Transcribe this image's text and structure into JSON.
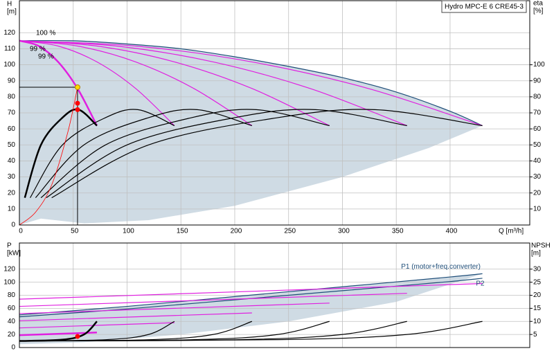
{
  "header": {
    "title": "Hydro MPC-E 6 CRE45-3"
  },
  "chart_data": [
    {
      "type": "line",
      "y_label": [
        "H",
        "[m]"
      ],
      "y2_label": [
        "eta",
        "[%]"
      ],
      "x_label": "Q [m³/h]",
      "annotations": [
        "100 %",
        "99 %",
        "99 %"
      ],
      "xlim": [
        0,
        474
      ],
      "ylim": [
        0,
        140
      ],
      "y2lim": [
        0,
        140
      ],
      "xticks": [
        0,
        50,
        100,
        150,
        200,
        250,
        300,
        350,
        400
      ],
      "yticks": [
        0,
        10,
        20,
        30,
        40,
        50,
        60,
        70,
        80,
        90,
        100,
        110,
        120
      ],
      "y2ticks": [
        10,
        20,
        30,
        40,
        50,
        60,
        70,
        80,
        90,
        100
      ],
      "grid": true,
      "area": {
        "color": "#cfdbe4",
        "x": [
          0,
          50,
          100,
          150,
          200,
          250,
          300,
          350,
          400,
          430,
          380,
          300,
          200,
          120,
          60,
          20,
          0
        ],
        "values": [
          114,
          115,
          113,
          110,
          105,
          99,
          92,
          83,
          71,
          62,
          48,
          30,
          12,
          3,
          1,
          4,
          0
        ]
      },
      "series": [
        {
          "color": "#1f4e79",
          "x": [
            0,
            50,
            100,
            150,
            200,
            250,
            300,
            350,
            400,
            430
          ],
          "values": [
            115,
            115,
            113,
            110,
            105,
            99,
            92,
            83,
            71,
            62
          ]
        },
        {
          "color": "#e020e0",
          "x": [
            0,
            18,
            36,
            54,
            72
          ],
          "values": [
            115,
            111.7,
            101.8,
            85.2,
            62
          ],
          "width": 2.5
        },
        {
          "color": "#e020e0",
          "x": [
            0,
            36,
            72,
            108,
            144
          ],
          "values": [
            115,
            111.7,
            101.8,
            85.2,
            62
          ]
        },
        {
          "color": "#e020e0",
          "x": [
            0,
            54,
            108,
            162,
            216
          ],
          "values": [
            115,
            111.7,
            101.8,
            85.2,
            62
          ]
        },
        {
          "color": "#e020e0",
          "x": [
            0,
            72,
            144,
            216,
            288
          ],
          "values": [
            115,
            111.7,
            101.8,
            85.2,
            62
          ]
        },
        {
          "color": "#e020e0",
          "x": [
            0,
            90,
            180,
            270,
            360
          ],
          "values": [
            115,
            111.7,
            101.8,
            85.2,
            62
          ]
        },
        {
          "color": "#e020e0",
          "x": [
            0,
            108,
            216,
            324,
            430
          ],
          "values": [
            115,
            111.7,
            101.8,
            85.2,
            62
          ]
        },
        {
          "color": "#000000",
          "axis": "y2",
          "x": [
            5,
            20,
            40,
            55,
            72
          ],
          "values": [
            17,
            50,
            67,
            72,
            62
          ],
          "width": 2.5
        },
        {
          "color": "#000000",
          "axis": "y2",
          "x": [
            10,
            40,
            80,
            110,
            144
          ],
          "values": [
            17,
            50,
            67,
            72,
            62
          ]
        },
        {
          "color": "#000000",
          "axis": "y2",
          "x": [
            15,
            60,
            120,
            165,
            216
          ],
          "values": [
            17,
            50,
            67,
            72,
            62
          ]
        },
        {
          "color": "#000000",
          "axis": "y2",
          "x": [
            20,
            80,
            160,
            220,
            288
          ],
          "values": [
            17,
            50,
            67,
            72,
            62
          ]
        },
        {
          "color": "#000000",
          "axis": "y2",
          "x": [
            25,
            100,
            200,
            275,
            360
          ],
          "values": [
            17,
            50,
            67,
            72,
            62
          ]
        },
        {
          "color": "#000000",
          "axis": "y2",
          "x": [
            30,
            120,
            240,
            330,
            430
          ],
          "values": [
            17,
            50,
            67,
            72,
            62
          ]
        },
        {
          "color": "#ff0000",
          "x": [
            0,
            15,
            30,
            45,
            54
          ],
          "values": [
            0,
            8,
            25,
            58,
            86
          ],
          "width": 0.8
        }
      ],
      "markers": {
        "x": [
          54,
          54,
          54
        ],
        "values": [
          86,
          76,
          72
        ],
        "colors": [
          "#ffd700",
          "#ff0000",
          "#ff0000"
        ]
      }
    },
    {
      "type": "line",
      "y_label": [
        "P",
        "[kW]"
      ],
      "y2_label": [
        "NPSH",
        "[m]"
      ],
      "xlim": [
        0,
        474
      ],
      "ylim": [
        0,
        160
      ],
      "y2lim": [
        0,
        40
      ],
      "xticks": [
        0,
        50,
        100,
        150,
        200,
        250,
        300,
        350,
        400
      ],
      "yticks": [
        0,
        20,
        40,
        60,
        80,
        100,
        120
      ],
      "y2ticks": [
        5,
        10,
        15,
        20,
        25,
        30
      ],
      "grid": true,
      "area": {
        "color": "#cfdbe4",
        "x": [
          0,
          100,
          200,
          300,
          430,
          350,
          250,
          150,
          60,
          0
        ],
        "values": [
          50,
          63,
          78,
          93,
          113,
          70,
          40,
          20,
          8,
          5
        ]
      },
      "series": [
        {
          "name": "P1 (motor+freq.converter)",
          "color": "#1f4e79",
          "x": [
            0,
            100,
            200,
            300,
            400,
            430
          ],
          "values": [
            50,
            63,
            78,
            93,
            108,
            113
          ]
        },
        {
          "name": "P2",
          "color": "#1f4e79",
          "x": [
            0,
            100,
            200,
            300,
            400,
            430
          ],
          "values": [
            47,
            59,
            73,
            87,
            101,
            106
          ]
        },
        {
          "color": "#e020e0",
          "x": [
            0,
            72
          ],
          "values": [
            19,
            23
          ],
          "width": 2.5
        },
        {
          "color": "#e020e0",
          "x": [
            0,
            144
          ],
          "values": [
            30,
            38
          ]
        },
        {
          "color": "#e020e0",
          "x": [
            0,
            216
          ],
          "values": [
            41,
            53
          ]
        },
        {
          "color": "#e020e0",
          "x": [
            0,
            288
          ],
          "values": [
            52,
            68
          ]
        },
        {
          "color": "#e020e0",
          "x": [
            0,
            360
          ],
          "values": [
            63,
            83
          ]
        },
        {
          "color": "#e020e0",
          "x": [
            0,
            430
          ],
          "values": [
            74,
            98
          ]
        },
        {
          "color": "#000000",
          "axis": "y2",
          "x": [
            0,
            40,
            60,
            72
          ],
          "values": [
            2.5,
            3,
            5,
            10
          ],
          "width": 2.5
        },
        {
          "color": "#000000",
          "axis": "y2",
          "x": [
            0,
            80,
            120,
            144
          ],
          "values": [
            2.5,
            3,
            5,
            10
          ]
        },
        {
          "color": "#000000",
          "axis": "y2",
          "x": [
            0,
            120,
            180,
            216
          ],
          "values": [
            2.5,
            3,
            5,
            10
          ]
        },
        {
          "color": "#000000",
          "axis": "y2",
          "x": [
            0,
            160,
            240,
            288
          ],
          "values": [
            2.5,
            3,
            5,
            10
          ]
        },
        {
          "color": "#000000",
          "axis": "y2",
          "x": [
            0,
            200,
            300,
            360
          ],
          "values": [
            2.5,
            3,
            5,
            10
          ]
        },
        {
          "color": "#000000",
          "axis": "y2",
          "x": [
            0,
            240,
            360,
            430
          ],
          "values": [
            2.5,
            3,
            5,
            10
          ]
        }
      ],
      "markers": {
        "x": [
          54
        ],
        "values": [
          17
        ],
        "colors": [
          "#ff0000"
        ]
      }
    }
  ]
}
